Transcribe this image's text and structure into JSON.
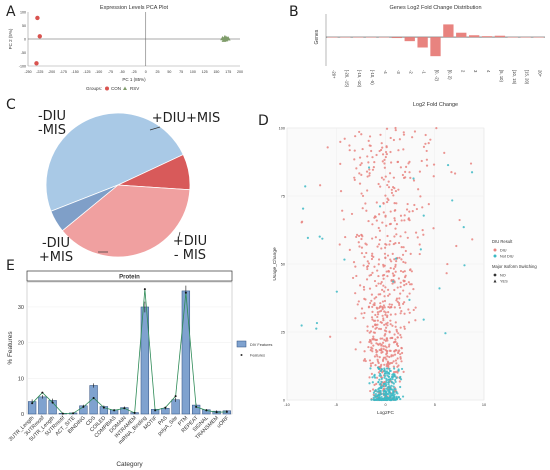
{
  "panel_letters": [
    "A",
    "B",
    "C",
    "D",
    "E"
  ],
  "chart_data": [
    {
      "panel": "A",
      "type": "scatter",
      "title": "Expression Levels PCA Plot",
      "xlabel": "PC 1 (85%)",
      "ylabel": "PC 2 (5%)",
      "xlim": [
        -250,
        200
      ],
      "ylim": [
        -100,
        100
      ],
      "xticks": [
        -250,
        -225,
        -200,
        -175,
        -150,
        -125,
        -100,
        -75,
        -50,
        -25,
        0,
        25,
        50,
        75,
        100,
        125,
        150,
        175,
        200
      ],
      "yticks": [
        -100,
        -50,
        0,
        50,
        100
      ],
      "legend_title": "Groups:",
      "series": [
        {
          "name": "CON",
          "color": "#d9534f",
          "marker": "circle",
          "points": [
            [
              -230,
              78
            ],
            [
              -225,
              10
            ],
            [
              -232,
              -90
            ]
          ]
        },
        {
          "name": "RSV",
          "color": "#7f9c6a",
          "marker": "triangle",
          "points": [
            [
              163,
              2
            ],
            [
              168,
              6
            ],
            [
              172,
              3
            ],
            [
              170,
              -2
            ],
            [
              175,
              1
            ],
            [
              166,
              -4
            ]
          ]
        }
      ]
    },
    {
      "panel": "B",
      "type": "bar",
      "title": "Genes Log2 Fold Change Distribution",
      "xlabel": "Log2 Fold Change",
      "ylabel": "Genes",
      "categories": [
        "-20+",
        "[-20, -15)",
        "[-15, -10)",
        "[-10, -5)",
        "-4",
        "-3",
        "-2",
        "-1",
        "[0, -2)",
        "[0, 2)",
        "2",
        "3",
        "4",
        "[5, 10)",
        "[10, 15)",
        "[15, 20)",
        "20+"
      ],
      "values": [
        0,
        0,
        0,
        0,
        -20,
        -80,
        -350,
        -900,
        -1650,
        1100,
        380,
        160,
        80,
        120,
        0,
        0,
        0
      ],
      "ylim": [
        -2500,
        2000
      ],
      "color": "#e8837f"
    },
    {
      "panel": "C",
      "type": "pie",
      "slices": [
        {
          "label": "-DIU\n-MIS",
          "value": 49,
          "color": "#a9c9e6"
        },
        {
          "label": "+DIU+MIS",
          "value": 8,
          "color": "#d85a5a"
        },
        {
          "label": "+DIU\n- MIS",
          "value": 38,
          "color": "#f0a0a0"
        },
        {
          "label": "-DIU\n+MIS",
          "value": 5,
          "color": "#7f9fc8"
        }
      ]
    },
    {
      "panel": "D",
      "type": "scatter",
      "xlabel": "Log2FC",
      "ylabel": "Usage_Change",
      "xlim": [
        -10,
        10
      ],
      "ylim": [
        0,
        100
      ],
      "xticks": [
        -10,
        -5,
        0,
        5,
        10
      ],
      "yticks": [
        0,
        25,
        50,
        75,
        100
      ],
      "legend": [
        {
          "title": "DIU Result",
          "items": [
            {
              "name": "DIU",
              "color": "#e8837f"
            },
            {
              "name": "Not DIU",
              "color": "#3cb9c4"
            }
          ]
        },
        {
          "title": "Major Isoform Switching",
          "items": [
            {
              "name": "NO",
              "marker": "circle"
            },
            {
              "name": "YES",
              "marker": "triangle"
            }
          ]
        }
      ]
    },
    {
      "panel": "E",
      "type": "bar",
      "facet_title": "Protein",
      "xlabel": "Category",
      "ylabel": "% Features",
      "ylim": [
        0,
        37
      ],
      "yticks": [
        0,
        10,
        20,
        30
      ],
      "categories": [
        "3UTR_Length",
        "3UTRmotif",
        "5UTR_Length",
        "5UTRmotif",
        "ACT_SITE",
        "BINDING",
        "CDS",
        "COILED",
        "COMPBIAS",
        "DOMAIN",
        "INTRAMEM",
        "miRNA_Binding",
        "MOTIF",
        "PAS",
        "polyA_Site",
        "PTM",
        "REPEAT",
        "SIGNAL",
        "TRANSMEM",
        "uORF"
      ],
      "values": [
        3.5,
        4.8,
        3.8,
        0.2,
        0.3,
        2.3,
        8.0,
        2.1,
        1.2,
        1.8,
        0.4,
        30.0,
        1.3,
        1.6,
        4.0,
        34.5,
        2.5,
        1.2,
        0.8,
        0.9
      ],
      "error": [
        0.6,
        0.5,
        0.5,
        0.1,
        0.1,
        0.3,
        0.6,
        0.3,
        0.2,
        0.3,
        0.1,
        1.5,
        0.2,
        0.3,
        0.6,
        1.5,
        0.4,
        0.2,
        0.2,
        0.2
      ],
      "line_values": [
        3.0,
        6.0,
        3.2,
        0.1,
        0.2,
        2.0,
        4.5,
        1.8,
        1.0,
        1.6,
        0.3,
        35.0,
        1.0,
        1.8,
        5.0,
        34.0,
        2.0,
        1.0,
        0.5,
        0.6
      ],
      "legend": [
        {
          "name": "DIV Features",
          "color": "#7fa2cf"
        },
        {
          "name": "Features",
          "color": "#333333"
        }
      ]
    }
  ]
}
